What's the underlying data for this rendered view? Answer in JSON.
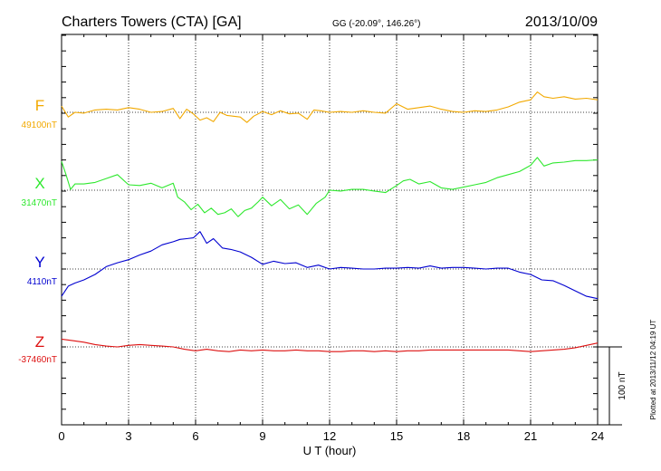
{
  "header": {
    "station": "Charters Towers (CTA)  [GA]",
    "coords": "GG (-20.09°, 146.26°)",
    "date": "2013/10/09"
  },
  "footer": {
    "plotted": "Plotted at 2013/11/12 04:19 UT"
  },
  "chart_data": {
    "type": "line",
    "title": "Charters Towers (CTA)  [GA]",
    "xlabel": "U T (hour)",
    "xlim": [
      0,
      24
    ],
    "x_ticks": [
      "0",
      "3",
      "6",
      "9",
      "12",
      "15",
      "18",
      "21",
      "24"
    ],
    "grid": true,
    "scale_bar": {
      "label": "100 nT",
      "value": 100
    },
    "series": [
      {
        "name": "F",
        "baseline_label": "49100nT",
        "baseline": 49100,
        "color": "#f2a900",
        "x": [
          0,
          0.3,
          0.6,
          1,
          1.5,
          2,
          2.5,
          3,
          3.5,
          4,
          4.5,
          5,
          5.3,
          5.6,
          5.9,
          6.2,
          6.5,
          6.8,
          7.1,
          7.4,
          7.7,
          8,
          8.3,
          8.6,
          9,
          9.4,
          9.8,
          10.2,
          10.6,
          11,
          11.3,
          11.6,
          12,
          12.5,
          13,
          13.5,
          14,
          14.5,
          15,
          15.5,
          16,
          16.5,
          17,
          17.5,
          18,
          18.5,
          19,
          19.5,
          20,
          20.5,
          21,
          21.3,
          21.6,
          22,
          22.5,
          23,
          23.5,
          24
        ],
        "y": [
          49108,
          49094,
          49100,
          49099,
          49103,
          49104,
          49103,
          49106,
          49104,
          49100,
          49101,
          49105,
          49092,
          49104,
          49098,
          49090,
          49093,
          49088,
          49100,
          49096,
          49095,
          49094,
          49087,
          49095,
          49101,
          49097,
          49102,
          49098,
          49099,
          49091,
          49103,
          49102,
          49100,
          49101,
          49100,
          49102,
          49100,
          49099,
          49111,
          49104,
          49106,
          49108,
          49104,
          49101,
          49100,
          49102,
          49101,
          49103,
          49107,
          49113,
          49116,
          49126,
          49120,
          49118,
          49120,
          49117,
          49118,
          49116
        ]
      },
      {
        "name": "X",
        "baseline_label": "31470nT",
        "baseline": 31470,
        "color": "#2ee82e",
        "x": [
          0,
          0.2,
          0.4,
          0.6,
          1,
          1.5,
          2,
          2.5,
          3,
          3.5,
          4,
          4.5,
          5,
          5.2,
          5.5,
          5.8,
          6.1,
          6.4,
          6.7,
          7,
          7.3,
          7.6,
          7.9,
          8.2,
          8.5,
          8.8,
          9,
          9.4,
          9.8,
          10.2,
          10.6,
          11,
          11.4,
          11.8,
          12,
          12.5,
          13,
          13.5,
          14,
          14.5,
          15,
          15.3,
          15.6,
          16,
          16.5,
          17,
          17.5,
          18,
          18.5,
          19,
          19.5,
          20,
          20.5,
          21,
          21.3,
          21.6,
          22,
          22.5,
          23,
          23.5,
          24
        ],
        "y": [
          31507,
          31490,
          31471,
          31478,
          31478,
          31480,
          31485,
          31490,
          31477,
          31476,
          31479,
          31473,
          31479,
          31461,
          31455,
          31445,
          31452,
          31441,
          31447,
          31439,
          31441,
          31446,
          31436,
          31444,
          31447,
          31455,
          31461,
          31450,
          31458,
          31446,
          31451,
          31439,
          31453,
          31461,
          31470,
          31469,
          31471,
          31471,
          31469,
          31467,
          31476,
          31482,
          31484,
          31478,
          31481,
          31473,
          31471,
          31474,
          31477,
          31480,
          31486,
          31490,
          31494,
          31502,
          31512,
          31501,
          31505,
          31506,
          31508,
          31508,
          31509
        ]
      },
      {
        "name": "Y",
        "baseline_label": "4110nT",
        "baseline": 4110,
        "color": "#0000d0",
        "x": [
          0,
          0.3,
          0.6,
          1,
          1.5,
          2,
          2.5,
          3,
          3.5,
          4,
          4.5,
          5,
          5.3,
          5.6,
          5.9,
          6.2,
          6.5,
          6.8,
          7.2,
          7.6,
          8,
          8.5,
          9,
          9.5,
          10,
          10.5,
          11,
          11.5,
          12,
          12.5,
          13,
          13.5,
          14,
          14.5,
          15,
          15.5,
          16,
          16.5,
          17,
          17.5,
          18,
          18.5,
          19,
          19.5,
          20,
          20.5,
          21,
          21.5,
          22,
          22.5,
          23,
          23.5,
          24
        ],
        "y": [
          4075,
          4088,
          4092,
          4096,
          4103,
          4113,
          4118,
          4122,
          4128,
          4133,
          4141,
          4145,
          4148,
          4149,
          4150,
          4158,
          4143,
          4149,
          4137,
          4135,
          4132,
          4125,
          4116,
          4120,
          4117,
          4118,
          4112,
          4115,
          4110,
          4112,
          4111,
          4110,
          4110,
          4111,
          4111,
          4112,
          4111,
          4114,
          4111,
          4112,
          4112,
          4111,
          4110,
          4111,
          4111,
          4106,
          4103,
          4096,
          4095,
          4089,
          4082,
          4075,
          4072
        ]
      },
      {
        "name": "Z",
        "baseline_label": "-37460nT",
        "baseline": -37460,
        "color": "#dd1111",
        "x": [
          0,
          0.5,
          1,
          1.5,
          2,
          2.5,
          3,
          3.5,
          4,
          4.5,
          5,
          5.5,
          6,
          6.5,
          7,
          7.5,
          8,
          8.5,
          9,
          9.5,
          10,
          10.5,
          11,
          11.5,
          12,
          12.5,
          13,
          13.5,
          14,
          14.5,
          15,
          15.5,
          16,
          16.5,
          17,
          17.5,
          18,
          18.5,
          19,
          19.5,
          20,
          20.5,
          21,
          21.5,
          22,
          22.5,
          23,
          23.5,
          24
        ],
        "y": [
          -37450,
          -37452,
          -37454,
          -37457,
          -37459,
          -37460,
          -37458,
          -37457,
          -37458,
          -37459,
          -37460,
          -37463,
          -37465,
          -37463,
          -37465,
          -37466,
          -37464,
          -37465,
          -37464,
          -37465,
          -37465,
          -37464,
          -37465,
          -37465,
          -37466,
          -37466,
          -37465,
          -37465,
          -37466,
          -37465,
          -37466,
          -37465,
          -37465,
          -37464,
          -37464,
          -37464,
          -37464,
          -37464,
          -37464,
          -37464,
          -37464,
          -37465,
          -37466,
          -37465,
          -37464,
          -37463,
          -37461,
          -37458,
          -37455
        ]
      }
    ]
  }
}
